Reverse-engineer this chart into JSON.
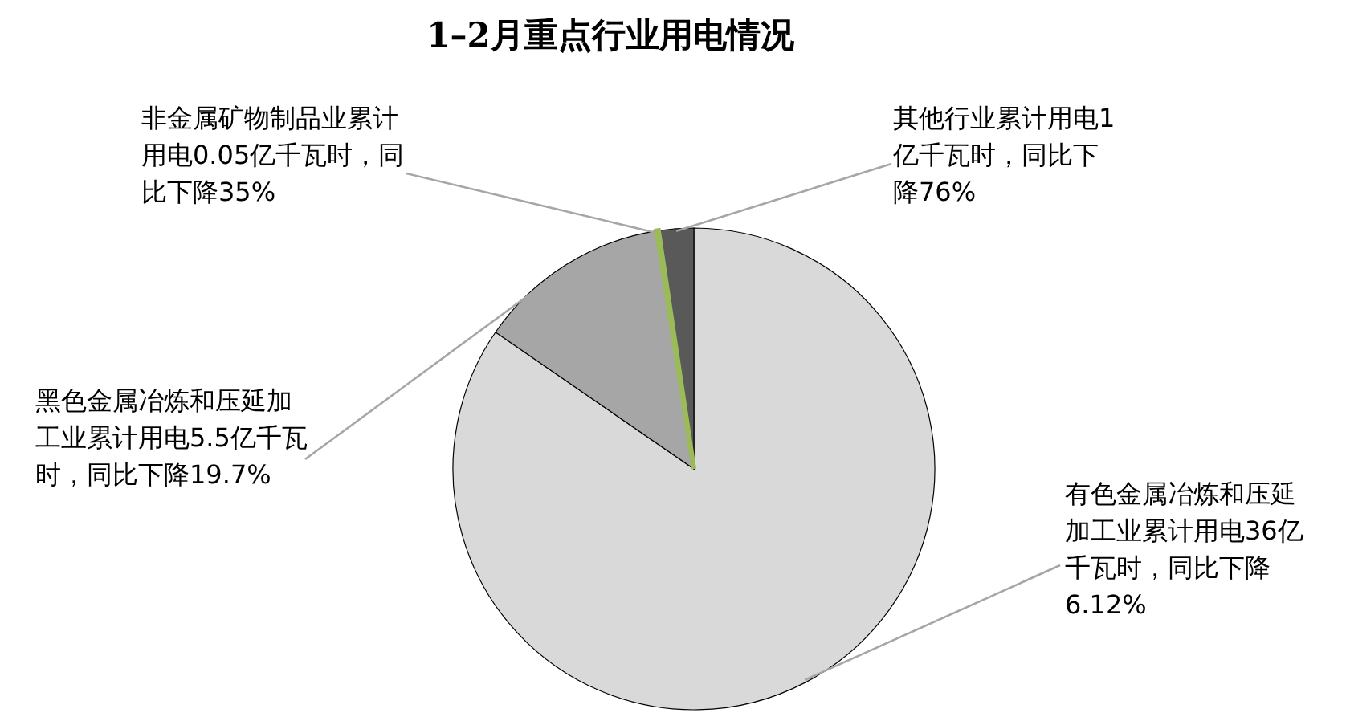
{
  "chart_data": {
    "type": "pie",
    "title": "1–2月重点行业用电情况",
    "categories": [
      "有色金属冶炼和压延加工业累计用电36亿千瓦时，同比下降6.12%",
      "黑色金属冶炼和压延加工业累计用电5.5亿千瓦时，同比下降19.7%",
      "非金属矿物制品业累计用电0.05亿千瓦时，同比下降35%",
      "其他行业累计用电1亿千瓦时，同比下降76%"
    ],
    "values": [
      36,
      5.5,
      0.05,
      1
    ],
    "colors": [
      "#d9d9d9",
      "#a6a6a6",
      "#9bbb59",
      "#595959"
    ]
  }
}
